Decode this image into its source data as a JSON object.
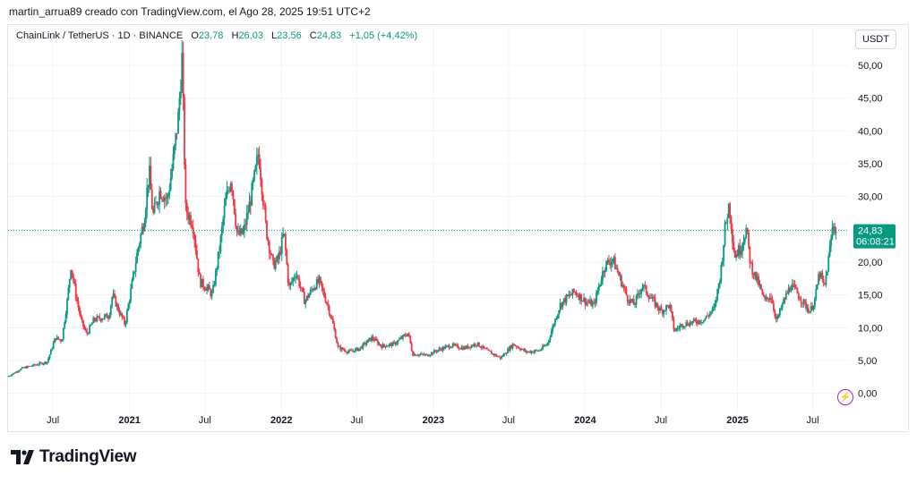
{
  "caption": "martin_arrua89 creado con TradingView.com, el Ago 28, 2025 19:51 UTC+2",
  "legend": {
    "symbol": "ChainLink / TetherUS · 1D · BINANCE",
    "o_label": "O",
    "o_value": "23,78",
    "h_label": "H",
    "h_value": "26,03",
    "l_label": "L",
    "l_value": "23,56",
    "c_label": "C",
    "c_value": "24,83",
    "change": "+1,05 (+4,42%)"
  },
  "currency_button": "USDT",
  "brand": "TradingView",
  "colors": {
    "up": "#089981",
    "down": "#f23645",
    "price_tag": "#089981",
    "alert": "#9c27b0"
  },
  "icons": [
    "tradingview-logo-icon",
    "alert-bolt-icon"
  ],
  "chart_data": {
    "type": "candlestick",
    "symbol": "ChainLink / TetherUS",
    "interval": "1D",
    "exchange": "BINANCE",
    "ylim": [
      -2.5,
      54.5
    ],
    "y_ticks": [
      {
        "value": 0,
        "label": "0,00"
      },
      {
        "value": 5,
        "label": "5,00"
      },
      {
        "value": 10,
        "label": "10,00"
      },
      {
        "value": 15,
        "label": "15,00"
      },
      {
        "value": 20,
        "label": "20,00"
      },
      {
        "value": 25,
        "label": "25,00"
      },
      {
        "value": 30,
        "label": "30,00"
      },
      {
        "value": 35,
        "label": "35,00"
      },
      {
        "value": 40,
        "label": "40,00"
      },
      {
        "value": 45,
        "label": "45,00"
      },
      {
        "value": 50,
        "label": "50,00"
      }
    ],
    "x_ticks": [
      {
        "date": "2020-07-01",
        "label": "Jul"
      },
      {
        "date": "2021-01-01",
        "label": "2021"
      },
      {
        "date": "2021-07-01",
        "label": "Jul"
      },
      {
        "date": "2022-01-01",
        "label": "2022"
      },
      {
        "date": "2022-07-01",
        "label": "Jul"
      },
      {
        "date": "2023-01-01",
        "label": "2023"
      },
      {
        "date": "2023-07-01",
        "label": "Jul"
      },
      {
        "date": "2024-01-01",
        "label": "2024"
      },
      {
        "date": "2024-07-01",
        "label": "Jul"
      },
      {
        "date": "2025-01-01",
        "label": "2025"
      },
      {
        "date": "2025-07-01",
        "label": "Jul"
      }
    ],
    "xlim": [
      "2020-03-15",
      "2025-09-26"
    ],
    "last_price": 24.83,
    "last_price_label": "24,83",
    "countdown": "06:08:21",
    "price_path": [
      [
        "2020-03-16",
        2.5
      ],
      [
        "2020-04-20",
        3.8
      ],
      [
        "2020-05-20",
        4.3
      ],
      [
        "2020-06-20",
        4.8
      ],
      [
        "2020-07-10",
        8.5
      ],
      [
        "2020-07-25",
        8.0
      ],
      [
        "2020-08-08",
        14.5
      ],
      [
        "2020-08-16",
        19.5
      ],
      [
        "2020-08-28",
        15.0
      ],
      [
        "2020-09-10",
        11.0
      ],
      [
        "2020-09-23",
        9.0
      ],
      [
        "2020-10-10",
        11.2
      ],
      [
        "2020-10-28",
        11.5
      ],
      [
        "2020-11-15",
        11.8
      ],
      [
        "2020-11-24",
        15.0
      ],
      [
        "2020-12-10",
        12.5
      ],
      [
        "2020-12-24",
        10.5
      ],
      [
        "2021-01-08",
        16.0
      ],
      [
        "2021-01-24",
        22.0
      ],
      [
        "2021-02-08",
        26.5
      ],
      [
        "2021-02-20",
        34.0
      ],
      [
        "2021-03-01",
        27.0
      ],
      [
        "2021-03-18",
        31.0
      ],
      [
        "2021-04-05",
        29.5
      ],
      [
        "2021-04-20",
        36.0
      ],
      [
        "2021-05-01",
        42.0
      ],
      [
        "2021-05-10",
        51.0
      ],
      [
        "2021-05-19",
        28.0
      ],
      [
        "2021-06-05",
        26.0
      ],
      [
        "2021-06-22",
        17.0
      ],
      [
        "2021-07-10",
        16.0
      ],
      [
        "2021-07-22",
        15.0
      ],
      [
        "2021-08-08",
        22.0
      ],
      [
        "2021-08-22",
        29.0
      ],
      [
        "2021-09-05",
        33.0
      ],
      [
        "2021-09-20",
        24.0
      ],
      [
        "2021-10-05",
        24.5
      ],
      [
        "2021-10-20",
        29.0
      ],
      [
        "2021-11-05",
        34.5
      ],
      [
        "2021-11-10",
        37.0
      ],
      [
        "2021-11-28",
        25.0
      ],
      [
        "2021-12-15",
        19.5
      ],
      [
        "2021-12-28",
        20.5
      ],
      [
        "2022-01-10",
        24.5
      ],
      [
        "2022-01-22",
        16.0
      ],
      [
        "2022-02-08",
        18.5
      ],
      [
        "2022-03-01",
        14.0
      ],
      [
        "2022-03-25",
        16.5
      ],
      [
        "2022-04-05",
        17.0
      ],
      [
        "2022-04-25",
        13.5
      ],
      [
        "2022-05-08",
        10.5
      ],
      [
        "2022-05-20",
        7.0
      ],
      [
        "2022-06-15",
        6.3
      ],
      [
        "2022-07-10",
        6.8
      ],
      [
        "2022-08-10",
        8.5
      ],
      [
        "2022-09-01",
        7.2
      ],
      [
        "2022-10-01",
        7.5
      ],
      [
        "2022-11-05",
        9.2
      ],
      [
        "2022-11-15",
        6.0
      ],
      [
        "2022-12-20",
        5.8
      ],
      [
        "2023-01-15",
        6.6
      ],
      [
        "2023-02-15",
        7.3
      ],
      [
        "2023-03-20",
        6.9
      ],
      [
        "2023-04-18",
        7.6
      ],
      [
        "2023-05-15",
        6.4
      ],
      [
        "2023-06-15",
        5.4
      ],
      [
        "2023-07-15",
        7.5
      ],
      [
        "2023-08-15",
        6.3
      ],
      [
        "2023-09-15",
        6.5
      ],
      [
        "2023-10-05",
        7.5
      ],
      [
        "2023-10-20",
        10.5
      ],
      [
        "2023-11-05",
        13.5
      ],
      [
        "2023-11-20",
        14.5
      ],
      [
        "2023-12-10",
        15.5
      ],
      [
        "2024-01-05",
        14.0
      ],
      [
        "2024-01-25",
        13.5
      ],
      [
        "2024-02-20",
        19.5
      ],
      [
        "2024-03-10",
        20.5
      ],
      [
        "2024-03-25",
        18.0
      ],
      [
        "2024-04-15",
        14.5
      ],
      [
        "2024-05-01",
        13.5
      ],
      [
        "2024-05-20",
        16.5
      ],
      [
        "2024-06-10",
        14.5
      ],
      [
        "2024-07-05",
        12.5
      ],
      [
        "2024-07-25",
        13.5
      ],
      [
        "2024-08-05",
        9.5
      ],
      [
        "2024-08-25",
        10.5
      ],
      [
        "2024-09-15",
        10.8
      ],
      [
        "2024-10-15",
        11.2
      ],
      [
        "2024-11-10",
        13.0
      ],
      [
        "2024-11-25",
        18.5
      ],
      [
        "2024-12-05",
        25.0
      ],
      [
        "2024-12-15",
        29.0
      ],
      [
        "2024-12-28",
        21.0
      ],
      [
        "2025-01-10",
        22.0
      ],
      [
        "2025-01-25",
        25.0
      ],
      [
        "2025-02-05",
        19.5
      ],
      [
        "2025-02-25",
        16.5
      ],
      [
        "2025-03-10",
        14.0
      ],
      [
        "2025-03-25",
        15.0
      ],
      [
        "2025-04-08",
        11.0
      ],
      [
        "2025-04-25",
        14.0
      ],
      [
        "2025-05-12",
        16.5
      ],
      [
        "2025-05-25",
        15.5
      ],
      [
        "2025-06-15",
        13.5
      ],
      [
        "2025-06-28",
        12.5
      ],
      [
        "2025-07-10",
        14.5
      ],
      [
        "2025-07-20",
        18.5
      ],
      [
        "2025-08-01",
        16.0
      ],
      [
        "2025-08-10",
        20.0
      ],
      [
        "2025-08-22",
        26.0
      ],
      [
        "2025-08-28",
        24.83
      ]
    ]
  }
}
